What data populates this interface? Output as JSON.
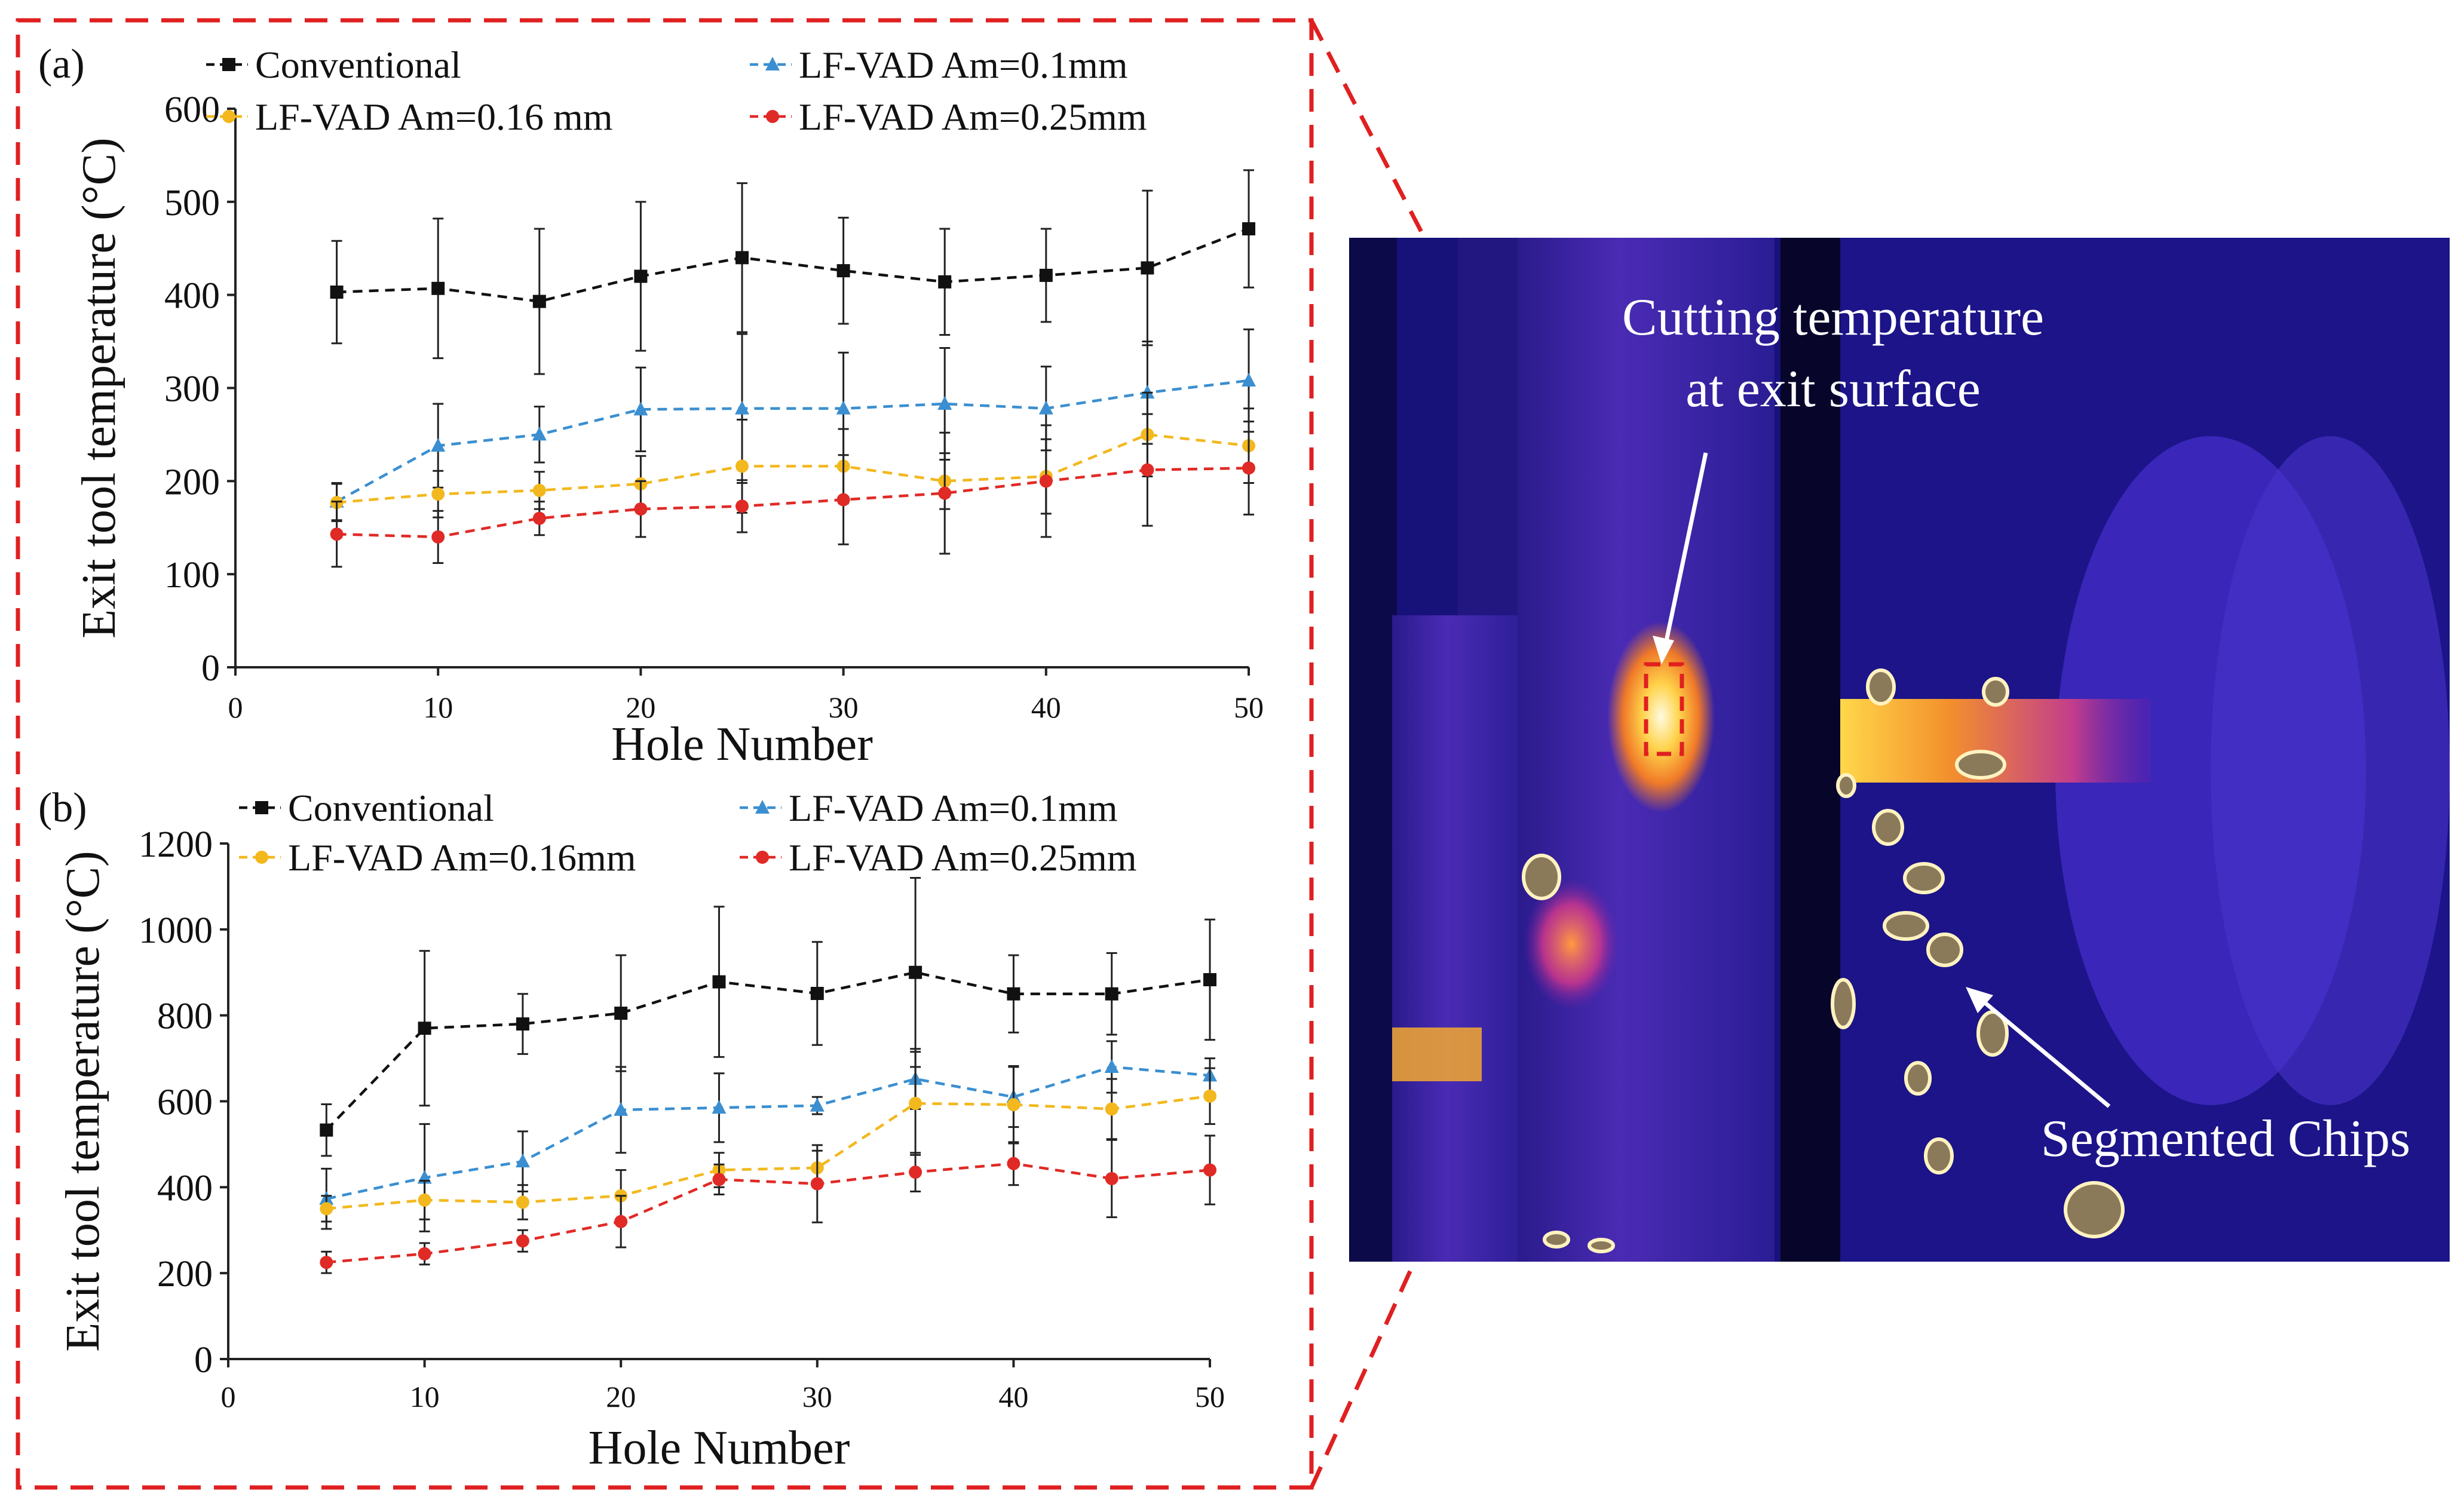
{
  "chart_data": [
    {
      "panel": "(a)",
      "type": "line",
      "xlabel": "Hole Number",
      "ylabel": "Exit tool temperature (°C)",
      "xlim": [
        0,
        50
      ],
      "ylim": [
        0,
        600
      ],
      "xticks": [
        "0",
        "10",
        "20",
        "30",
        "40",
        "50"
      ],
      "yticks": [
        "0",
        "100",
        "200",
        "300",
        "400",
        "500",
        "600"
      ],
      "x": [
        5,
        10,
        15,
        20,
        25,
        30,
        35,
        40,
        45,
        50
      ],
      "series": [
        {
          "name": "Conventional",
          "marker": "square",
          "color": "#111111",
          "values": [
            403,
            407,
            393,
            420,
            440,
            426,
            414,
            421,
            429,
            471
          ],
          "errors": [
            55,
            75,
            78,
            80,
            80,
            57,
            57,
            50,
            83,
            63
          ]
        },
        {
          "name": "LF-VAD Am=0.1mm",
          "marker": "triangle",
          "color": "#3b8fd0",
          "values": [
            178,
            238,
            250,
            277,
            278,
            278,
            283,
            278,
            295,
            308
          ],
          "errors": [
            20,
            45,
            30,
            45,
            80,
            60,
            60,
            45,
            55,
            55
          ]
        },
        {
          "name": "LF-VAD Am=0.16 mm",
          "marker": "circle",
          "color": "#f2b81e",
          "values": [
            177,
            186,
            190,
            197,
            216,
            216,
            200,
            205,
            250,
            238
          ],
          "errors": [
            20,
            25,
            20,
            30,
            50,
            40,
            30,
            40,
            45,
            40
          ]
        },
        {
          "name": "LF-VAD Am=0.25mm",
          "marker": "circle",
          "color": "#e02a26",
          "values": [
            143,
            140,
            160,
            170,
            173,
            180,
            187,
            200,
            212,
            214
          ],
          "errors": [
            35,
            28,
            18,
            30,
            28,
            48,
            65,
            60,
            60,
            50
          ]
        }
      ]
    },
    {
      "panel": "(b)",
      "type": "line",
      "xlabel": "Hole Number",
      "ylabel": "Exit tool temperature (°C)",
      "xlim": [
        0,
        50
      ],
      "ylim": [
        0,
        1200
      ],
      "xticks": [
        "0",
        "10",
        "20",
        "30",
        "40",
        "50"
      ],
      "yticks": [
        "0",
        "200",
        "400",
        "600",
        "800",
        "1000",
        "1200"
      ],
      "x": [
        5,
        10,
        15,
        20,
        25,
        30,
        35,
        40,
        45,
        50
      ],
      "series": [
        {
          "name": "Conventional",
          "marker": "square",
          "color": "#111111",
          "values": [
            533,
            770,
            780,
            805,
            878,
            851,
            900,
            850,
            850,
            883
          ],
          "errors": [
            60,
            180,
            70,
            135,
            175,
            120,
            220,
            90,
            95,
            140
          ]
        },
        {
          "name": "LF-VAD Am=0.1mm",
          "marker": "triangle",
          "color": "#3b8fd0",
          "values": [
            373,
            422,
            460,
            580,
            585,
            590,
            652,
            610,
            680,
            660
          ],
          "errors": [
            70,
            125,
            70,
            100,
            80,
            20,
            70,
            70,
            60,
            40
          ]
        },
        {
          "name": "LF-VAD Am=0.16mm",
          "marker": "circle",
          "color": "#f2b81e",
          "values": [
            350,
            370,
            365,
            380,
            440,
            445,
            595,
            592,
            582,
            612
          ],
          "errors": [
            30,
            45,
            40,
            60,
            40,
            40,
            120,
            90,
            70,
            65
          ]
        },
        {
          "name": "LF-VAD Am=0.25mm",
          "marker": "circle",
          "color": "#e02a26",
          "values": [
            225,
            245,
            275,
            320,
            418,
            408,
            435,
            455,
            420,
            440
          ],
          "errors": [
            25,
            25,
            25,
            60,
            35,
            90,
            45,
            50,
            90,
            80
          ]
        }
      ]
    }
  ],
  "thermal_image": {
    "annotation_cutting": [
      "Cutting temperature",
      "at exit surface"
    ],
    "annotation_chips": "Segmented Chips"
  }
}
